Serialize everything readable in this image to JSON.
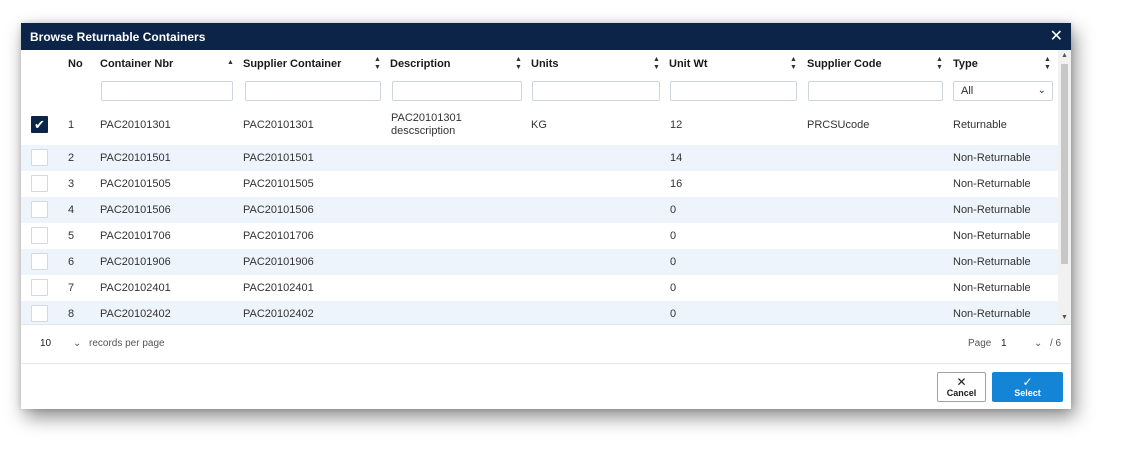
{
  "dialog": {
    "title": "Browse Returnable Containers",
    "close_glyph": "✕"
  },
  "columns": [
    {
      "key": "no",
      "label": "No"
    },
    {
      "key": "container_nbr",
      "label": "Container Nbr",
      "sort": "asc"
    },
    {
      "key": "supplier_container",
      "label": "Supplier Container",
      "sort": "both"
    },
    {
      "key": "description",
      "label": "Description",
      "sort": "both"
    },
    {
      "key": "units",
      "label": "Units",
      "sort": "both"
    },
    {
      "key": "unit_wt",
      "label": "Unit Wt",
      "sort": "both"
    },
    {
      "key": "supplier_code",
      "label": "Supplier Code",
      "sort": "both"
    },
    {
      "key": "type",
      "label": "Type",
      "sort": "both"
    }
  ],
  "filters": {
    "type_value": "All",
    "type_options": [
      "All"
    ]
  },
  "rows": [
    {
      "checked": true,
      "no": "1",
      "container_nbr": "PAC20101301",
      "supplier_container": "PAC20101301",
      "description_line1": "PAC20101301",
      "description_line2": "descscription",
      "units": "KG",
      "unit_wt": "12",
      "supplier_code": "PRCSUcode",
      "type": "Returnable"
    },
    {
      "checked": false,
      "no": "2",
      "container_nbr": "PAC20101501",
      "supplier_container": "PAC20101501",
      "description_line1": "",
      "description_line2": "",
      "units": "",
      "unit_wt": "14",
      "supplier_code": "",
      "type": "Non-Returnable"
    },
    {
      "checked": false,
      "no": "3",
      "container_nbr": "PAC20101505",
      "supplier_container": "PAC20101505",
      "description_line1": "",
      "description_line2": "",
      "units": "",
      "unit_wt": "16",
      "supplier_code": "",
      "type": "Non-Returnable"
    },
    {
      "checked": false,
      "no": "4",
      "container_nbr": "PAC20101506",
      "supplier_container": "PAC20101506",
      "description_line1": "",
      "description_line2": "",
      "units": "",
      "unit_wt": "0",
      "supplier_code": "",
      "type": "Non-Returnable"
    },
    {
      "checked": false,
      "no": "5",
      "container_nbr": "PAC20101706",
      "supplier_container": "PAC20101706",
      "description_line1": "",
      "description_line2": "",
      "units": "",
      "unit_wt": "0",
      "supplier_code": "",
      "type": "Non-Returnable"
    },
    {
      "checked": false,
      "no": "6",
      "container_nbr": "PAC20101906",
      "supplier_container": "PAC20101906",
      "description_line1": "",
      "description_line2": "",
      "units": "",
      "unit_wt": "0",
      "supplier_code": "",
      "type": "Non-Returnable"
    },
    {
      "checked": false,
      "no": "7",
      "container_nbr": "PAC20102401",
      "supplier_container": "PAC20102401",
      "description_line1": "",
      "description_line2": "",
      "units": "",
      "unit_wt": "0",
      "supplier_code": "",
      "type": "Non-Returnable"
    },
    {
      "checked": false,
      "no": "8",
      "container_nbr": "PAC20102402",
      "supplier_container": "PAC20102402",
      "description_line1": "",
      "description_line2": "",
      "units": "",
      "unit_wt": "0",
      "supplier_code": "",
      "type": "Non-Returnable"
    }
  ],
  "pager": {
    "page_size": "10",
    "records_per_page_label": "records per page",
    "page_label": "Page",
    "current_page": "1",
    "total_pages_label": "/ 6"
  },
  "buttons": {
    "cancel_label": "Cancel",
    "select_label": "Select"
  },
  "colors": {
    "titlebar": "#0b2447",
    "row_alt": "#eef4fc",
    "select_button": "#1485d6"
  },
  "icons": {
    "close": "close-icon",
    "sort_asc": "sort-asc-icon",
    "sort_both": "sort-both-icon",
    "chevron": "chevron-down-icon",
    "checkmark": "checkmark-icon",
    "cancel": "x-icon"
  }
}
